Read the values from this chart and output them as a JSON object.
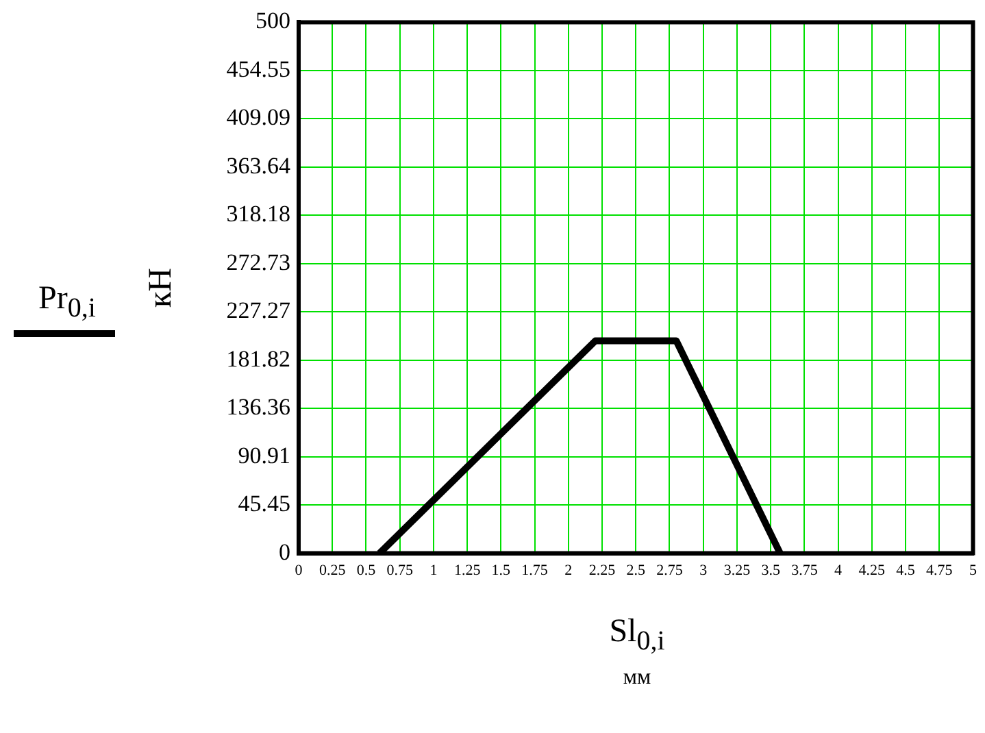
{
  "chart_data": {
    "type": "line",
    "xlabel": "Sl$_{0,i}$\nмм",
    "ylabel": "кН",
    "legend": "left",
    "grid": true,
    "marker": "none",
    "line_style": "solid",
    "xlim": [
      0,
      5
    ],
    "xticks": [
      0,
      0.25,
      0.5,
      0.75,
      1,
      1.25,
      1.5,
      1.75,
      2,
      2.25,
      2.5,
      2.75,
      3,
      3.25,
      3.5,
      3.75,
      4,
      4.25,
      4.5,
      4.75,
      5
    ],
    "ylim": [
      0,
      500
    ],
    "yticks": [
      0,
      45.45,
      90.91,
      136.36,
      181.82,
      227.27,
      272.73,
      318.18,
      363.64,
      409.09,
      454.55,
      500
    ],
    "series": [
      {
        "name": "Pr$_{0,i}$",
        "color": "#000000",
        "x": [
          0.6,
          2.2,
          2.8,
          3.57
        ],
        "values": [
          0,
          200,
          200,
          0
        ]
      }
    ]
  }
}
